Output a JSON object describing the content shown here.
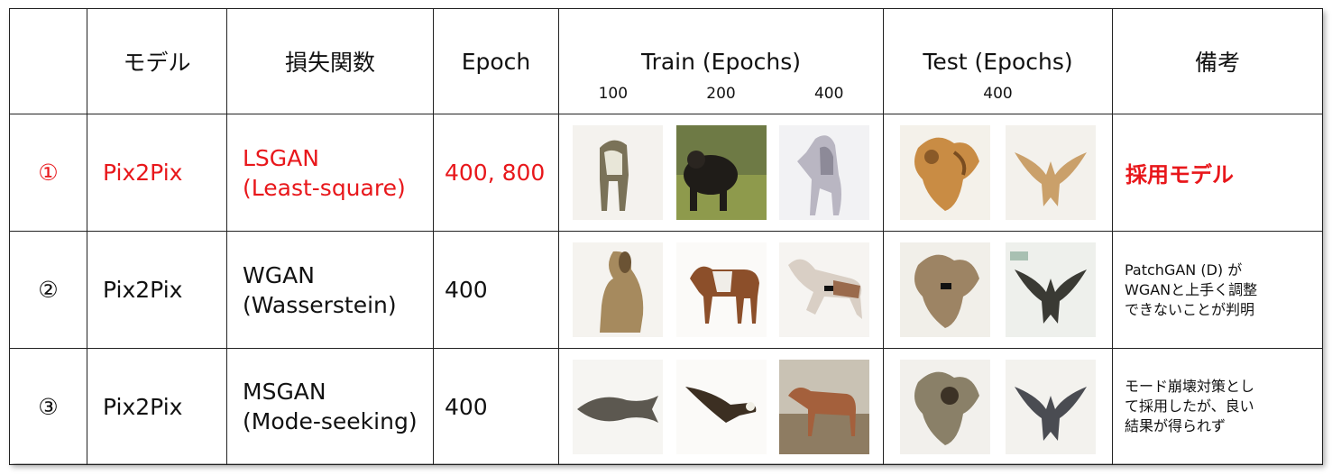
{
  "header": {
    "col_num": "",
    "model": "モデル",
    "loss": "損失関数",
    "epoch": "Epoch",
    "train": "Train (Epochs)",
    "train_epochs": [
      "100",
      "200",
      "400"
    ],
    "test": "Test (Epochs)",
    "test_epochs": [
      "400"
    ],
    "notes": "備考"
  },
  "rows": [
    {
      "num": "①",
      "model": "Pix2Pix",
      "loss_line1": "LSGAN",
      "loss_line2": "(Least-square)",
      "epoch": "400, 800",
      "note_lines": [
        "採用モデル"
      ],
      "train_images": [
        "horse-figure",
        "bull-photo",
        "rearing-horse"
      ],
      "test_images": [
        "lion-figure",
        "bird-creature"
      ],
      "highlight": true
    },
    {
      "num": "②",
      "model": "Pix2Pix",
      "loss_line1": "WGAN",
      "loss_line2": "(Wasserstein)",
      "epoch": "400",
      "note_lines": [
        "PatchGAN (D) が",
        "WGANと上手く調整",
        "できないことが判明"
      ],
      "train_images": [
        "dog-figure",
        "horse-figure",
        "running-horse"
      ],
      "test_images": [
        "lion-figure",
        "bird-creature"
      ],
      "highlight": false
    },
    {
      "num": "③",
      "model": "Pix2Pix",
      "loss_line1": "MSGAN",
      "loss_line2": "(Mode-seeking)",
      "epoch": "400",
      "note_lines": [
        "モード崩壊対策とし",
        "て採用したが、良い",
        "結果が得られず"
      ],
      "train_images": [
        "fish-figure",
        "eagle-figure",
        "horse-photo"
      ],
      "test_images": [
        "lion-figure",
        "bird-creature"
      ],
      "highlight": false
    }
  ],
  "colors": {
    "highlight": "#e8171b",
    "border": "#222222"
  }
}
